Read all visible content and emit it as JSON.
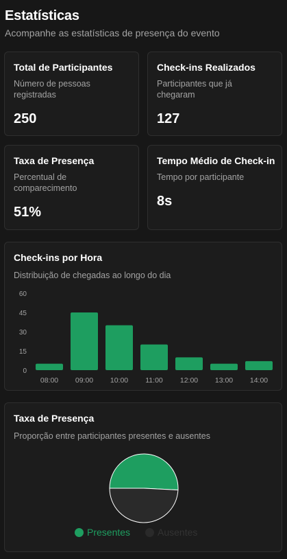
{
  "header": {
    "title": "Estatísticas",
    "subtitle": "Acompanhe as estatísticas de presença do evento"
  },
  "cards": {
    "total": {
      "title": "Total de Participantes",
      "desc_line1": "Número de pessoas",
      "desc_line2": "registradas",
      "value": "250"
    },
    "checkins": {
      "title": "Check-ins Realizados",
      "desc_line1": "Participantes que já",
      "desc_line2": "chegaram",
      "value": "127"
    },
    "rate": {
      "title": "Taxa de Presença",
      "desc_line1": "Percentual de",
      "desc_line2": "comparecimento",
      "value": "51%"
    },
    "avg_time": {
      "title": "Tempo Médio de Check-in",
      "desc_line1": "Tempo por participante",
      "value": "8s"
    }
  },
  "hourly_card": {
    "title": "Check-ins por Hora",
    "desc": "Distribuição de chegadas ao longo do dia"
  },
  "presence_card": {
    "title": "Taxa de Presença",
    "desc": "Proporção entre participantes presentes e ausentes"
  },
  "colors": {
    "accent": "#1e9e60",
    "absent": "#2a2a2a",
    "muted": "#a3a3a3"
  },
  "chart_data": [
    {
      "type": "bar",
      "categories": [
        "08:00",
        "09:00",
        "10:00",
        "11:00",
        "12:00",
        "13:00",
        "14:00"
      ],
      "values": [
        5,
        45,
        35,
        20,
        10,
        5,
        7
      ],
      "yticks": [
        0,
        15,
        30,
        45,
        60
      ],
      "ylim": [
        0,
        60
      ],
      "grid": false
    },
    {
      "type": "pie",
      "labels": [
        "Presentes",
        "Ausentes"
      ],
      "values": [
        127,
        123
      ],
      "legend_position": "bottom",
      "legend": [
        "Presentes",
        "Ausentes"
      ]
    }
  ]
}
